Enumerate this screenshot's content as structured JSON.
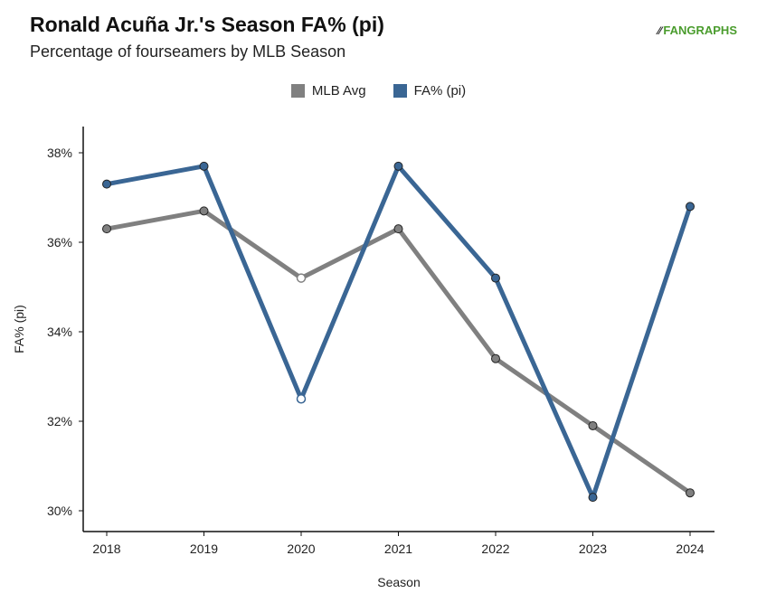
{
  "header": {
    "title": "Ronald Acuña Jr.'s Season FA% (pi)",
    "subtitle": "Percentage of fourseamers by MLB Season",
    "logo_text": "FANGRAPHS"
  },
  "chart_data": {
    "type": "line",
    "categories": [
      "2018",
      "2019",
      "2020",
      "2021",
      "2022",
      "2023",
      "2024"
    ],
    "series": [
      {
        "name": "MLB Avg",
        "color": "#808080",
        "values": [
          36.3,
          36.7,
          35.2,
          36.3,
          33.4,
          31.9,
          30.4
        ]
      },
      {
        "name": "FA% (pi)",
        "color": "#3a6694",
        "values": [
          37.3,
          37.7,
          32.5,
          37.7,
          35.2,
          30.3,
          36.8
        ]
      }
    ],
    "xlabel": "Season",
    "ylabel": "FA% (pi)",
    "ylim": [
      29.5,
      38.5
    ],
    "yticks": [
      30,
      32,
      34,
      36,
      38
    ],
    "ytick_labels": [
      "30%",
      "32%",
      "34%",
      "36%",
      "38%"
    ],
    "hollow_markers": [
      {
        "series": 0,
        "index": 2
      },
      {
        "series": 1,
        "index": 2
      }
    ],
    "legend_position": "top-center",
    "grid": false
  }
}
